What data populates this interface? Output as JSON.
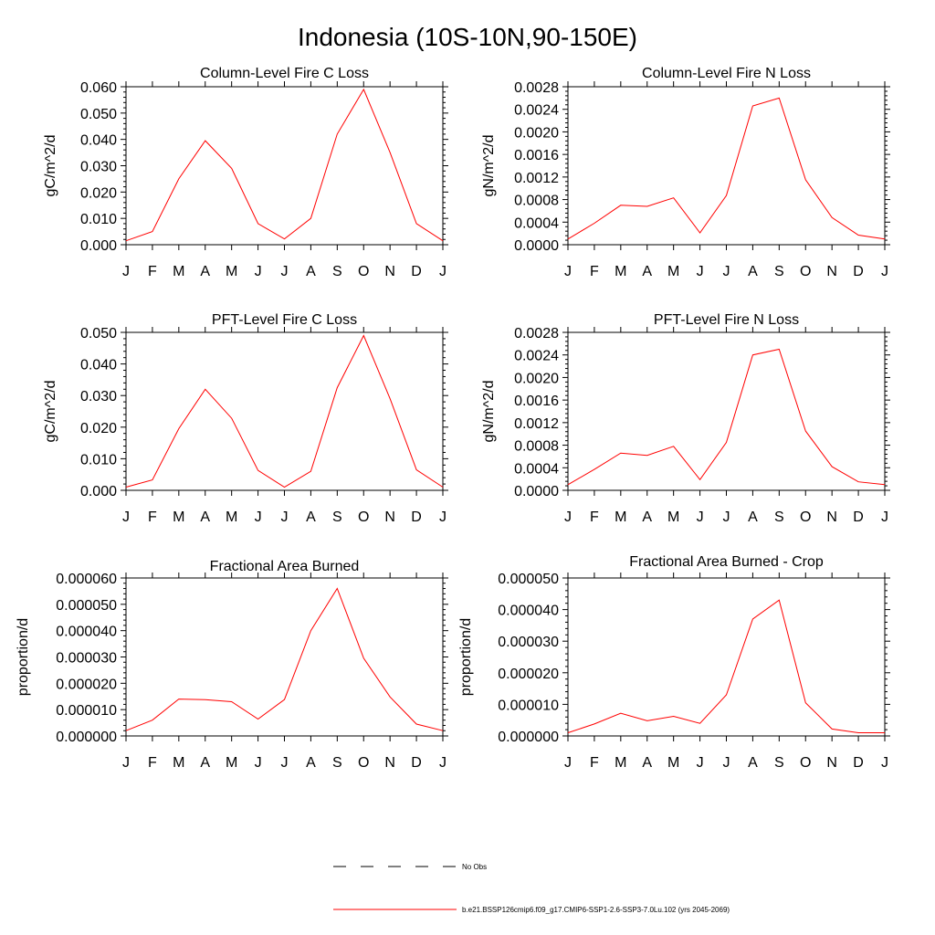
{
  "figure": {
    "title": "Indonesia (10S-10N,90-150E)"
  },
  "legend": {
    "items": [
      {
        "label": "No Obs",
        "color": "#000000",
        "dash": "dashed"
      },
      {
        "label": "b.e21.BSSP126cmip6.f09_g17.CMIP6-SSP1-2.6-SSP3-7.0Lu.102 (yrs 2045-2069)",
        "color": "#ff0000",
        "dash": "solid"
      }
    ]
  },
  "chart_data": [
    {
      "type": "line",
      "title": "Column-Level Fire C Loss",
      "ylabel": "gC/m^2/d",
      "categories": [
        "J",
        "F",
        "M",
        "A",
        "M",
        "J",
        "J",
        "A",
        "S",
        "O",
        "N",
        "D",
        "J"
      ],
      "ylim": [
        0,
        0.06
      ],
      "yticks": [
        "0.000",
        "0.010",
        "0.020",
        "0.030",
        "0.040",
        "0.050",
        "0.060"
      ],
      "series": [
        {
          "color": "#ff0000",
          "values": [
            0.0015,
            0.005,
            0.025,
            0.0395,
            0.029,
            0.008,
            0.0022,
            0.01,
            0.042,
            0.059,
            0.035,
            0.008,
            0.0015
          ]
        }
      ]
    },
    {
      "type": "line",
      "title": "Column-Level Fire N Loss",
      "ylabel": "gN/m^2/d",
      "categories": [
        "J",
        "F",
        "M",
        "A",
        "M",
        "J",
        "J",
        "A",
        "S",
        "O",
        "N",
        "D",
        "J"
      ],
      "ylim": [
        0,
        0.0028
      ],
      "yticks": [
        "0.0000",
        "0.0004",
        "0.0008",
        "0.0012",
        "0.0016",
        "0.0020",
        "0.0024",
        "0.0028"
      ],
      "series": [
        {
          "color": "#ff0000",
          "values": [
            0.0001,
            0.00038,
            0.0007,
            0.00068,
            0.00083,
            0.00021,
            0.00087,
            0.00246,
            0.0026,
            0.00115,
            0.00048,
            0.00017,
            0.0001
          ]
        }
      ]
    },
    {
      "type": "line",
      "title": "PFT-Level Fire C Loss",
      "ylabel": "gC/m^2/d",
      "categories": [
        "J",
        "F",
        "M",
        "A",
        "M",
        "J",
        "J",
        "A",
        "S",
        "O",
        "N",
        "D",
        "J"
      ],
      "ylim": [
        0,
        0.05
      ],
      "yticks": [
        "0.000",
        "0.010",
        "0.020",
        "0.030",
        "0.040",
        "0.050"
      ],
      "series": [
        {
          "color": "#ff0000",
          "values": [
            0.001,
            0.0033,
            0.0195,
            0.032,
            0.0228,
            0.0063,
            0.001,
            0.006,
            0.0325,
            0.049,
            0.029,
            0.0065,
            0.001
          ]
        }
      ]
    },
    {
      "type": "line",
      "title": "PFT-Level Fire N Loss",
      "ylabel": "gN/m^2/d",
      "categories": [
        "J",
        "F",
        "M",
        "A",
        "M",
        "J",
        "J",
        "A",
        "S",
        "O",
        "N",
        "D",
        "J"
      ],
      "ylim": [
        0,
        0.0028
      ],
      "yticks": [
        "0.0000",
        "0.0004",
        "0.0008",
        "0.0012",
        "0.0016",
        "0.0020",
        "0.0024",
        "0.0028"
      ],
      "series": [
        {
          "color": "#ff0000",
          "values": [
            0.0001,
            0.00037,
            0.00066,
            0.00062,
            0.00078,
            0.00019,
            0.00085,
            0.0024,
            0.0025,
            0.00105,
            0.00042,
            0.00015,
            0.0001
          ]
        }
      ]
    },
    {
      "type": "line",
      "title": "Fractional Area Burned",
      "ylabel": "proportion/d",
      "categories": [
        "J",
        "F",
        "M",
        "A",
        "M",
        "J",
        "J",
        "A",
        "S",
        "O",
        "N",
        "D",
        "J"
      ],
      "ylim": [
        0,
        6e-05
      ],
      "yticks": [
        "0.000000",
        "0.000010",
        "0.000020",
        "0.000030",
        "0.000040",
        "0.000050",
        "0.000060"
      ],
      "series": [
        {
          "color": "#ff0000",
          "values": [
            2e-06,
            6e-06,
            1.4e-05,
            1.38e-05,
            1.3e-05,
            6.4e-06,
            1.38e-05,
            4e-05,
            5.6e-05,
            2.95e-05,
            1.48e-05,
            4.5e-06,
            2e-06
          ]
        }
      ]
    },
    {
      "type": "line",
      "title": "Fractional Area Burned - Crop",
      "ylabel": "proportion/d",
      "categories": [
        "J",
        "F",
        "M",
        "A",
        "M",
        "J",
        "J",
        "A",
        "S",
        "O",
        "N",
        "D",
        "J"
      ],
      "ylim": [
        0,
        5e-05
      ],
      "yticks": [
        "0.000000",
        "0.000010",
        "0.000020",
        "0.000030",
        "0.000040",
        "0.000050"
      ],
      "series": [
        {
          "color": "#ff0000",
          "values": [
            1e-06,
            3.8e-06,
            7.2e-06,
            4.8e-06,
            6.2e-06,
            4e-06,
            1.3e-05,
            3.7e-05,
            4.3e-05,
            1.05e-05,
            2.2e-06,
            1e-06,
            1e-06
          ]
        }
      ]
    }
  ]
}
